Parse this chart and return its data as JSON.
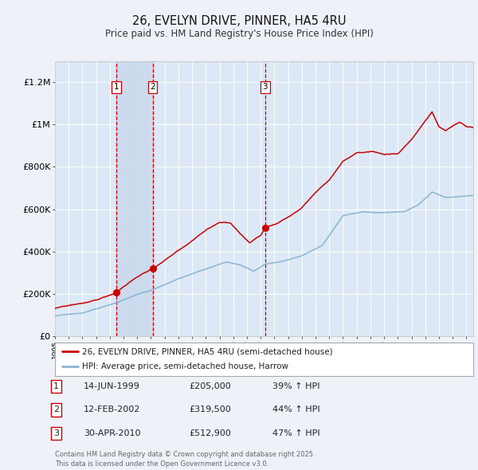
{
  "title": "26, EVELYN DRIVE, PINNER, HA5 4RU",
  "subtitle": "Price paid vs. HM Land Registry's House Price Index (HPI)",
  "background_color": "#eef2f8",
  "plot_bg_color": "#dce8f5",
  "grid_color": "#ffffff",
  "ylim": [
    0,
    1300000
  ],
  "yticks": [
    0,
    200000,
    400000,
    600000,
    800000,
    1000000,
    1200000
  ],
  "ytick_labels": [
    "£0",
    "£200K",
    "£400K",
    "£600K",
    "£800K",
    "£1M",
    "£1.2M"
  ],
  "sale_years": [
    1999.454,
    2002.12,
    2010.33
  ],
  "sale_prices": [
    205000,
    319500,
    512900
  ],
  "sale_labels": [
    "1",
    "2",
    "3"
  ],
  "sale_pct_above": [
    39,
    44,
    47
  ],
  "sale_display_dates": [
    "14-JUN-1999",
    "12-FEB-2002",
    "30-APR-2010"
  ],
  "legend_line1": "26, EVELYN DRIVE, PINNER, HA5 4RU (semi-detached house)",
  "legend_line2": "HPI: Average price, semi-detached house, Harrow",
  "red_line_color": "#cc0000",
  "blue_line_color": "#8ab4d4",
  "marker_color": "#cc0000",
  "vline_color": "#cc0000",
  "shade_color": "#c8d8ec",
  "footnote": "Contains HM Land Registry data © Crown copyright and database right 2025.\nThis data is licensed under the Open Government Licence v3.0."
}
